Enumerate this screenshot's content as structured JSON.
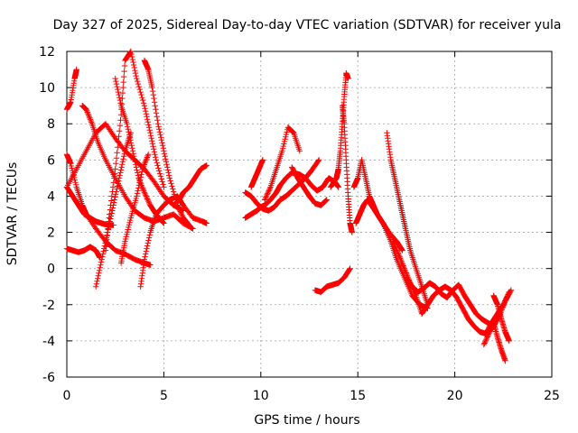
{
  "chart_data": {
    "type": "scatter",
    "title": "Day 327 of 2025, Sidereal Day-to-day VTEC variation (SDTVAR) for receiver yula",
    "xlabel": "GPS time / hours",
    "ylabel": "SDTVAR / TECUs",
    "xlim": [
      0,
      25
    ],
    "ylim": [
      -6,
      12
    ],
    "xticks": [
      0,
      5,
      10,
      15,
      20,
      25
    ],
    "yticks": [
      -6,
      -4,
      -2,
      0,
      2,
      4,
      6,
      8,
      10,
      12
    ],
    "grid": true,
    "marker": "+",
    "color": "#ff0000",
    "series": [
      {
        "name": "arc1",
        "x": [
          0.0,
          0.2,
          0.4,
          0.5
        ],
        "y": [
          8.8,
          9.2,
          10.5,
          11.0
        ]
      },
      {
        "name": "arc2",
        "x": [
          0.0,
          0.2,
          0.5,
          0.8,
          1.0,
          1.5,
          2.0,
          2.5,
          3.0,
          3.5,
          4.0,
          4.3
        ],
        "y": [
          6.3,
          5.8,
          4.5,
          3.5,
          3.0,
          2.2,
          1.5,
          1.0,
          0.8,
          0.5,
          0.3,
          0.2
        ]
      },
      {
        "name": "arc3",
        "x": [
          0.0,
          0.3,
          0.6,
          0.9,
          1.2,
          1.5,
          1.8,
          2.1,
          2.4
        ],
        "y": [
          4.5,
          4.0,
          3.5,
          3.0,
          2.8,
          2.6,
          2.5,
          2.4,
          2.4
        ]
      },
      {
        "name": "arc4",
        "x": [
          0.0,
          0.3,
          0.6,
          0.9,
          1.2,
          1.5,
          1.7
        ],
        "y": [
          1.1,
          1.0,
          0.9,
          1.0,
          1.2,
          1.0,
          0.6
        ]
      },
      {
        "name": "arc5",
        "x": [
          0.0,
          0.5,
          1.0,
          1.5,
          2.0,
          2.5,
          3.0,
          3.5,
          4.0,
          4.5,
          5.0,
          5.5,
          6.0
        ],
        "y": [
          4.5,
          5.5,
          6.5,
          7.5,
          8.0,
          7.2,
          6.5,
          6.0,
          5.5,
          4.8,
          4.0,
          3.5,
          3.2
        ]
      },
      {
        "name": "arc6",
        "x": [
          0.8,
          1.0,
          1.3,
          1.6,
          2.0,
          2.5,
          3.0,
          3.5,
          4.0,
          4.5,
          5.0,
          5.5,
          6.0,
          6.5
        ],
        "y": [
          9.0,
          8.8,
          8.0,
          7.0,
          6.0,
          5.0,
          4.0,
          3.2,
          2.8,
          2.6,
          2.8,
          3.0,
          2.5,
          2.2
        ]
      },
      {
        "name": "arc7",
        "x": [
          1.5,
          1.8,
          2.1,
          2.4,
          2.7,
          3.0,
          3.3
        ],
        "y": [
          -1.0,
          0.5,
          2.0,
          3.5,
          5.0,
          6.5,
          7.5
        ]
      },
      {
        "name": "arc8",
        "x": [
          2.0,
          2.2,
          2.5,
          2.8,
          3.0,
          3.3,
          3.6,
          4.0,
          4.3,
          4.6,
          5.0
        ],
        "y": [
          1.0,
          3.0,
          5.5,
          8.5,
          11.5,
          12.0,
          10.5,
          9.0,
          7.5,
          6.0,
          4.5
        ]
      },
      {
        "name": "arc9",
        "x": [
          2.5,
          2.8,
          3.1,
          3.4,
          3.7,
          4.0,
          4.3,
          4.6,
          5.0
        ],
        "y": [
          10.5,
          9.0,
          8.0,
          6.5,
          5.0,
          4.2,
          3.5,
          3.0,
          2.5
        ]
      },
      {
        "name": "arc10",
        "x": [
          2.8,
          3.0,
          3.3,
          3.6,
          3.9,
          4.2
        ],
        "y": [
          0.3,
          1.5,
          2.8,
          4.0,
          5.5,
          6.3
        ]
      },
      {
        "name": "arc11",
        "x": [
          3.8,
          4.0,
          4.3,
          4.6,
          5.0,
          5.3,
          5.7,
          6.0,
          6.5,
          7.0,
          7.2
        ],
        "y": [
          -1.0,
          0.5,
          2.0,
          3.0,
          3.5,
          3.8,
          4.0,
          3.5,
          2.8,
          2.6,
          2.5
        ]
      },
      {
        "name": "arc12",
        "x": [
          4.0,
          4.2,
          4.4,
          4.7,
          5.0,
          5.3,
          5.7,
          6.0,
          6.3
        ],
        "y": [
          11.5,
          11.0,
          10.0,
          8.0,
          6.5,
          5.0,
          3.5,
          2.8,
          2.4
        ]
      },
      {
        "name": "arc13",
        "x": [
          5.5,
          5.8,
          6.0,
          6.3,
          6.6,
          6.9,
          7.2
        ],
        "y": [
          3.5,
          3.8,
          4.2,
          4.5,
          5.0,
          5.5,
          5.7
        ]
      },
      {
        "name": "arc14",
        "x": [
          9.2,
          9.5,
          9.8,
          10.0,
          10.2,
          10.5,
          10.8,
          11.0,
          11.3,
          11.6,
          12.0,
          12.3,
          12.6,
          12.9,
          13.2,
          13.5,
          13.8,
          14.0
        ],
        "y": [
          2.8,
          3.0,
          3.2,
          3.4,
          3.5,
          3.8,
          4.2,
          4.6,
          5.0,
          5.3,
          5.2,
          5.0,
          4.6,
          4.3,
          4.5,
          5.0,
          4.8,
          4.5
        ]
      },
      {
        "name": "arc15",
        "x": [
          9.2,
          9.5,
          9.8,
          10.1,
          10.4,
          10.7,
          11.0,
          11.3,
          11.6,
          12.0,
          12.3,
          12.6,
          13.0
        ],
        "y": [
          4.2,
          4.0,
          3.6,
          3.3,
          3.2,
          3.4,
          3.8,
          4.0,
          4.3,
          4.7,
          5.0,
          5.4,
          6.0
        ]
      },
      {
        "name": "arc16",
        "x": [
          9.5,
          9.7,
          9.9,
          10.1
        ],
        "y": [
          4.5,
          5.0,
          5.5,
          6.0
        ]
      },
      {
        "name": "arc17",
        "x": [
          10.2,
          10.5,
          10.8,
          11.1,
          11.4,
          11.7,
          12.0
        ],
        "y": [
          3.8,
          4.5,
          5.5,
          6.5,
          7.8,
          7.5,
          6.5
        ]
      },
      {
        "name": "arc18",
        "x": [
          11.6,
          11.9,
          12.2,
          12.5,
          12.8,
          13.1,
          13.4
        ],
        "y": [
          5.6,
          5.0,
          4.5,
          4.0,
          3.6,
          3.5,
          3.8
        ]
      },
      {
        "name": "arc19",
        "x": [
          12.8,
          13.1,
          13.4,
          13.7,
          14.0,
          14.3,
          14.6
        ],
        "y": [
          -1.2,
          -1.3,
          -1.0,
          -0.9,
          -0.8,
          -0.5,
          0.0
        ]
      },
      {
        "name": "arc20",
        "x": [
          13.6,
          13.9,
          14.0,
          14.1,
          14.2,
          14.3,
          14.4,
          14.5
        ],
        "y": [
          4.5,
          5.0,
          5.5,
          6.5,
          8.0,
          9.5,
          10.8,
          10.5
        ]
      },
      {
        "name": "arc21",
        "x": [
          14.2,
          14.3,
          14.4,
          14.5,
          14.6,
          14.7
        ],
        "y": [
          9.0,
          8.0,
          6.0,
          4.0,
          2.5,
          2.0
        ]
      },
      {
        "name": "arc22",
        "x": [
          14.8,
          15.0,
          15.2,
          15.4,
          15.6,
          15.8,
          16.0,
          16.3,
          16.6,
          17.0,
          17.3
        ],
        "y": [
          4.5,
          5.0,
          6.0,
          5.0,
          4.0,
          3.5,
          3.0,
          2.5,
          2.0,
          1.5,
          1.0
        ]
      },
      {
        "name": "arc23",
        "x": [
          14.9,
          15.1,
          15.3,
          15.5,
          15.7,
          16.0,
          16.3,
          16.7,
          17.0,
          17.4,
          17.8,
          18.2,
          18.6
        ],
        "y": [
          2.5,
          3.0,
          3.5,
          3.8,
          3.5,
          3.0,
          2.5,
          1.5,
          0.5,
          -0.5,
          -1.5,
          -2.0,
          -2.2
        ]
      },
      {
        "name": "arc24",
        "x": [
          16.5,
          16.7,
          16.9,
          17.1,
          17.3,
          17.5,
          17.7,
          18.0,
          18.3,
          18.6
        ],
        "y": [
          7.5,
          6.0,
          5.0,
          4.0,
          3.0,
          2.0,
          1.0,
          0.0,
          -1.0,
          -2.0
        ]
      },
      {
        "name": "arc25",
        "x": [
          16.8,
          17.1,
          17.4,
          17.7,
          18.0,
          18.3,
          18.6,
          18.9,
          19.2,
          19.5,
          19.8,
          20.1,
          20.4,
          20.7,
          21.0,
          21.3,
          21.6,
          21.9,
          22.2,
          22.5,
          22.8
        ],
        "y": [
          1.5,
          0.8,
          0.0,
          -0.8,
          -1.5,
          -2.5,
          -2.0,
          -1.5,
          -1.2,
          -1.0,
          -1.2,
          -1.6,
          -2.2,
          -2.8,
          -3.2,
          -3.5,
          -3.6,
          -3.0,
          -2.5,
          -2.0,
          -1.3
        ]
      },
      {
        "name": "arc26",
        "x": [
          17.5,
          17.8,
          18.1,
          18.4,
          18.7,
          19.0,
          19.3,
          19.6,
          19.9,
          20.2,
          20.5,
          20.8,
          21.1,
          21.4,
          21.7,
          22.0,
          22.3,
          22.6,
          22.9
        ],
        "y": [
          -0.5,
          -1.0,
          -1.3,
          -1.1,
          -0.8,
          -1.0,
          -1.4,
          -1.6,
          -1.2,
          -0.9,
          -1.5,
          -2.0,
          -2.5,
          -2.8,
          -3.0,
          -3.2,
          -2.6,
          -1.8,
          -1.2
        ]
      },
      {
        "name": "arc27",
        "x": [
          21.5,
          21.8,
          22.0,
          22.2,
          22.4,
          22.6
        ],
        "y": [
          -4.2,
          -3.5,
          -3.0,
          -3.8,
          -4.5,
          -5.1
        ]
      },
      {
        "name": "arc28",
        "x": [
          22.0,
          22.2,
          22.4,
          22.6,
          22.8
        ],
        "y": [
          -1.5,
          -2.0,
          -2.8,
          -3.5,
          -4.0
        ]
      }
    ]
  }
}
